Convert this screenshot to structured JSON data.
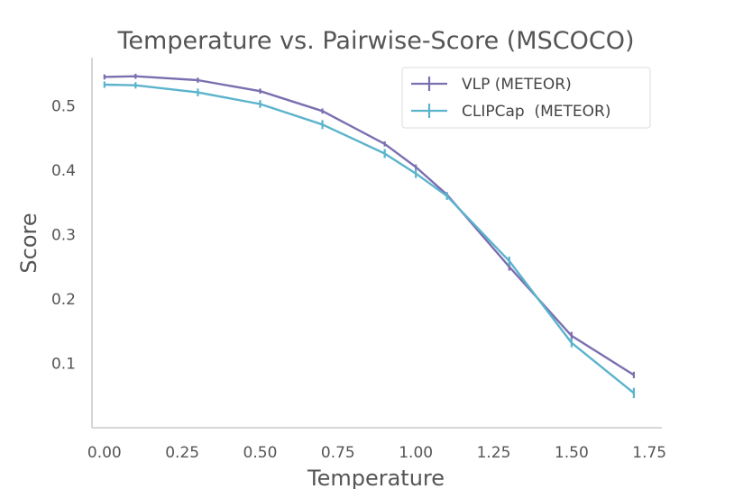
{
  "chart_data": {
    "type": "line",
    "title": "Temperature vs. Pairwise-Score (MSCOCO)",
    "xlabel": "Temperature",
    "ylabel": "Score",
    "xlim": [
      -0.04,
      1.79
    ],
    "ylim": [
      0.0,
      0.575
    ],
    "xticks": [
      0.0,
      0.25,
      0.5,
      0.75,
      1.0,
      1.25,
      1.5,
      1.75
    ],
    "xtick_labels": [
      "0.00",
      "0.25",
      "0.50",
      "0.75",
      "1.00",
      "1.25",
      "1.50",
      "1.75"
    ],
    "yticks": [
      0.1,
      0.2,
      0.3,
      0.4,
      0.5
    ],
    "ytick_labels": [
      "0.1",
      "0.2",
      "0.3",
      "0.4",
      "0.5"
    ],
    "legend_position": "top-right",
    "series": [
      {
        "name": "VLP (METEOR)",
        "color": "#7b6fb0",
        "x": [
          0.0,
          0.1,
          0.3,
          0.5,
          0.7,
          0.9,
          1.0,
          1.1,
          1.3,
          1.5,
          1.7
        ],
        "y": [
          0.545,
          0.546,
          0.54,
          0.523,
          0.492,
          0.441,
          0.405,
          0.362,
          0.25,
          0.143,
          0.082
        ],
        "err": [
          0.004,
          0.004,
          0.004,
          0.004,
          0.004,
          0.004,
          0.004,
          0.004,
          0.006,
          0.006,
          0.005
        ]
      },
      {
        "name": "CLIPCap  (METEOR)",
        "color": "#5bb3cc",
        "x": [
          0.0,
          0.1,
          0.3,
          0.5,
          0.7,
          0.9,
          1.0,
          1.1,
          1.3,
          1.5,
          1.7
        ],
        "y": [
          0.533,
          0.532,
          0.521,
          0.503,
          0.471,
          0.426,
          0.395,
          0.36,
          0.259,
          0.132,
          0.054
        ],
        "err": [
          0.005,
          0.005,
          0.006,
          0.006,
          0.007,
          0.007,
          0.007,
          0.006,
          0.007,
          0.007,
          0.008
        ]
      }
    ]
  }
}
